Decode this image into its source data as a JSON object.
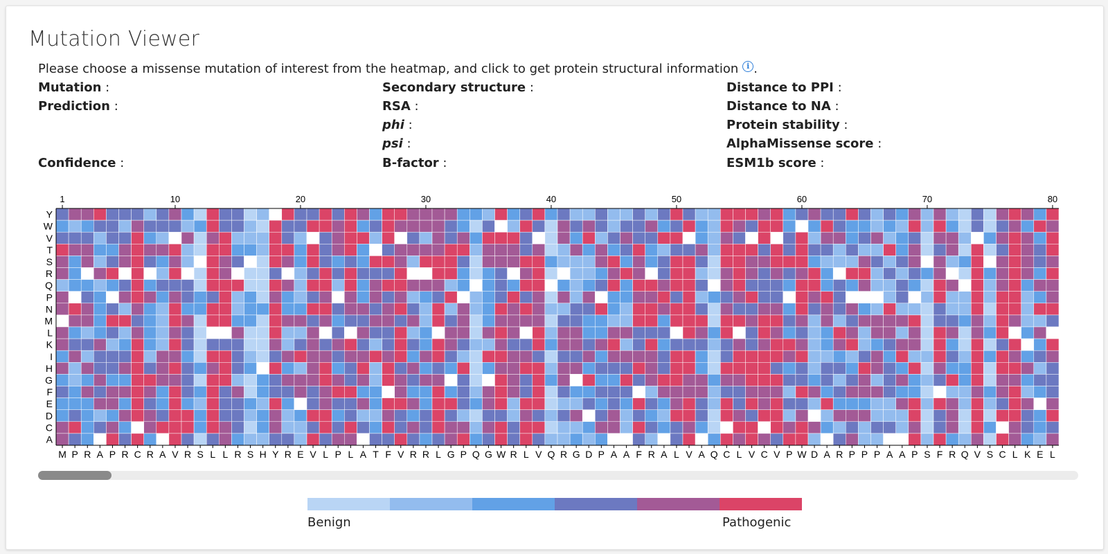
{
  "title": "Mutation Viewer",
  "instruction": "Please choose a missense mutation of interest from the heatmap, and click to get protein structural information",
  "instruction_end": ".",
  "info_icon": "info-icon",
  "fields": {
    "mutation": "Mutation",
    "prediction": "Prediction",
    "confidence": "Confidence",
    "secondary_structure": "Secondary structure",
    "rsa": "RSA",
    "phi": "phi",
    "psi": "psi",
    "b_factor": "B-factor",
    "distance_ppi": "Distance to PPI",
    "distance_na": "Distance to NA",
    "protein_stability": "Protein stability",
    "alphamissense": "AlphaMissense score",
    "esm1b": "ESM1b score",
    "separator": " :"
  },
  "heatmap": {
    "amino_acids": [
      "Y",
      "W",
      "V",
      "T",
      "S",
      "R",
      "Q",
      "P",
      "N",
      "M",
      "L",
      "K",
      "I",
      "H",
      "G",
      "F",
      "E",
      "D",
      "C",
      "A"
    ],
    "sequence": "MPRAPRCRAVRSLLRSHYREVLPLATFVRRLGPQGWRLVQRGDPAAFRALVAQCLVCVPWDARPPPAAPSFRQVSCLKEL",
    "position_ticks": [
      1,
      10,
      20,
      30,
      40,
      50,
      60,
      70,
      80
    ],
    "color_scale": [
      "#b9d5f5",
      "#93bcee",
      "#62a1e6",
      "#6c79c1",
      "#a35a96",
      "#db4467"
    ],
    "missing_color": "#ffffff"
  },
  "legend": {
    "benign": "Benign",
    "pathogenic": "Pathogenic",
    "colors": [
      "#b9d5f5",
      "#93bcee",
      "#62a1e6",
      "#6c79c1",
      "#a35a96",
      "#db4467"
    ]
  }
}
